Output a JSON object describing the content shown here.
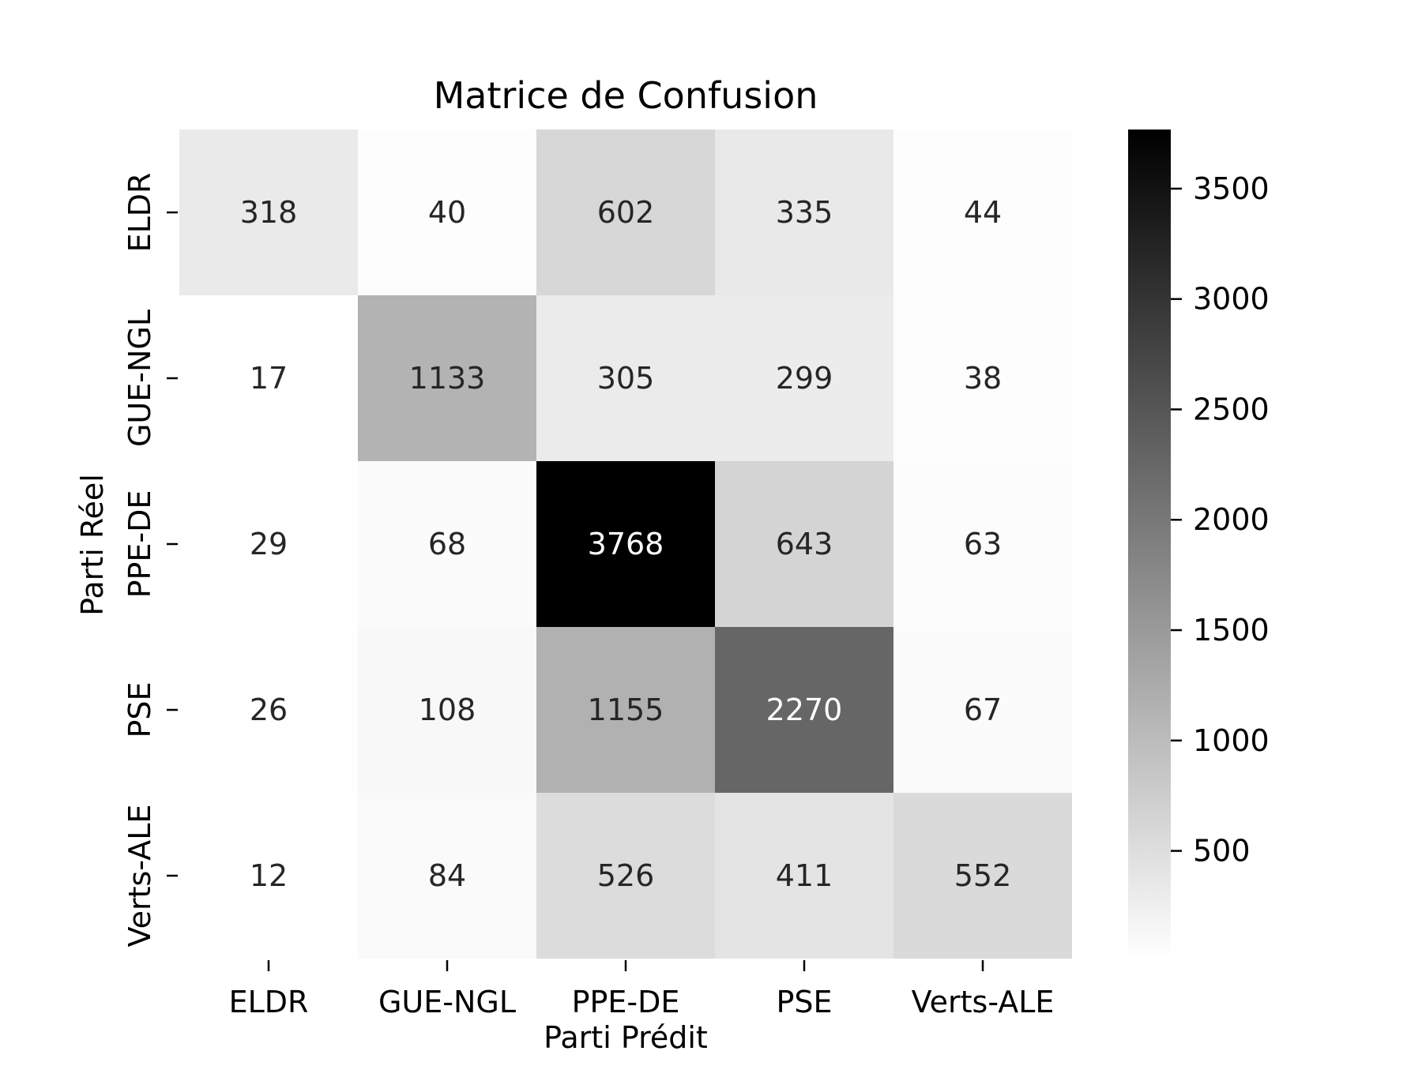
{
  "chart_data": {
    "type": "heatmap",
    "title": "Matrice de Confusion",
    "xlabel": "Parti Prédit",
    "ylabel": "Parti Réel",
    "x_categories": [
      "ELDR",
      "GUE-NGL",
      "PPE-DE",
      "PSE",
      "Verts-ALE"
    ],
    "y_categories": [
      "ELDR",
      "GUE-NGL",
      "PPE-DE",
      "PSE",
      "Verts-ALE"
    ],
    "values": [
      [
        318,
        40,
        602,
        335,
        44
      ],
      [
        17,
        1133,
        305,
        299,
        38
      ],
      [
        29,
        68,
        3768,
        643,
        63
      ],
      [
        26,
        108,
        1155,
        2270,
        67
      ],
      [
        12,
        84,
        526,
        411,
        552
      ]
    ],
    "colorscale": {
      "name": "Greys",
      "low_color": "#ffffff",
      "high_color": "#000000",
      "vmin": 12,
      "vmax": 3768
    },
    "colorbar": {
      "ticks": [
        500,
        1000,
        1500,
        2000,
        2500,
        3000,
        3500
      ]
    },
    "grid": false,
    "legend": "colorbar-right"
  }
}
